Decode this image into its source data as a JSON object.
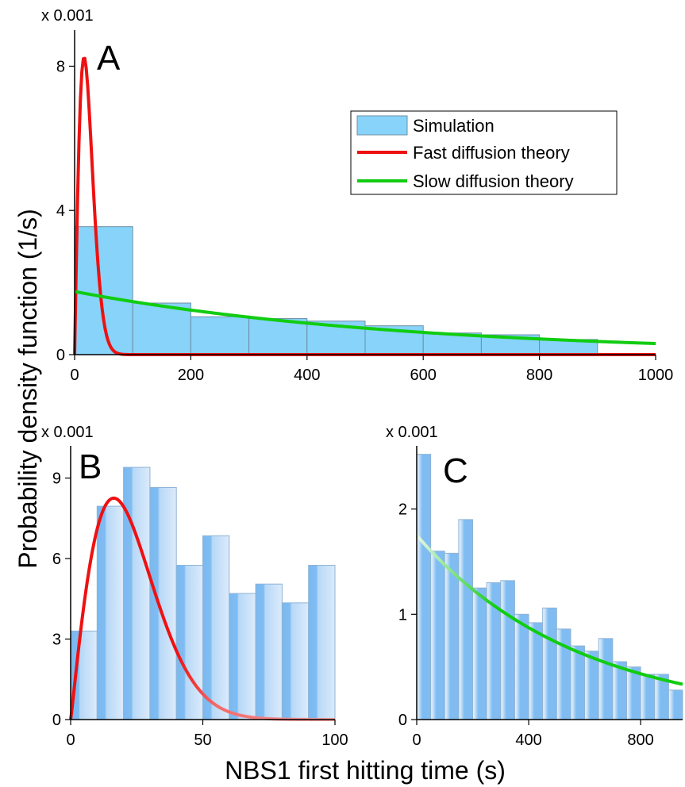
{
  "figure": {
    "ylabel": "Probability density function (1/s)",
    "xlabel": "NBS1 first hitting time (s)",
    "colors": {
      "hist_fill": "#87d3fa",
      "hist_stroke": "#6e8fa6",
      "fast": "#ee1111",
      "slow": "#11cc11",
      "hist_b_dark": "#7ab9f0",
      "hist_b_light": "#dcebfb"
    }
  },
  "chart_data": [
    {
      "panel": "A",
      "type": "bar+line",
      "multiplier_label": "x 0.001",
      "x_ticks": [
        "0",
        "200",
        "400",
        "600",
        "800",
        "1000"
      ],
      "y_ticks": [
        "0",
        "4",
        "8"
      ],
      "xlim": [
        0,
        1000
      ],
      "ylim": [
        0,
        9
      ],
      "bin_edges": [
        0,
        100,
        200,
        300,
        400,
        500,
        600,
        700,
        800,
        900
      ],
      "histogram": [
        3.55,
        1.43,
        1.05,
        1.0,
        0.93,
        0.8,
        0.6,
        0.55,
        0.42
      ],
      "legend": [
        "Simulation",
        "Fast diffusion theory",
        "Slow diffusion theory"
      ],
      "legend_position": "top-right",
      "series": [
        {
          "name": "Fast diffusion theory",
          "curve": "fast",
          "xmax": 1000
        },
        {
          "name": "Slow diffusion theory",
          "curve": "slow",
          "xmax": 1000
        }
      ]
    },
    {
      "panel": "B",
      "type": "bar+line",
      "multiplier_label": "x 0.001",
      "x_ticks": [
        "0",
        "50",
        "100"
      ],
      "y_ticks": [
        "0",
        "3",
        "6",
        "9"
      ],
      "xlim": [
        0,
        100
      ],
      "ylim": [
        0,
        10.2
      ],
      "bin_edges": [
        0,
        10,
        20,
        30,
        40,
        50,
        60,
        70,
        80,
        90
      ],
      "histogram": [
        3.3,
        7.95,
        9.4,
        8.65,
        5.75,
        6.85,
        4.7,
        5.05,
        4.35,
        5.75
      ],
      "series": [
        {
          "name": "Fast diffusion theory",
          "curve": "fast",
          "xmax": 100
        }
      ]
    },
    {
      "panel": "C",
      "type": "bar+line",
      "multiplier_label": "x 0.001",
      "x_ticks": [
        "0",
        "400",
        "800"
      ],
      "y_ticks": [
        "0",
        "1",
        "2"
      ],
      "xlim": [
        0,
        950
      ],
      "ylim": [
        0,
        2.6
      ],
      "bin_edges": [
        0,
        50,
        100,
        150,
        200,
        250,
        300,
        350,
        400,
        450,
        500,
        550,
        600,
        650,
        700,
        750,
        800,
        850,
        900
      ],
      "histogram": [
        2.52,
        1.6,
        1.58,
        1.9,
        1.25,
        1.3,
        1.32,
        1.0,
        0.92,
        1.06,
        0.86,
        0.7,
        0.65,
        0.77,
        0.55,
        0.5,
        0.43,
        0.43,
        0.28
      ],
      "series": [
        {
          "name": "Slow diffusion theory",
          "curve": "slow",
          "xmax": 950
        }
      ]
    }
  ]
}
